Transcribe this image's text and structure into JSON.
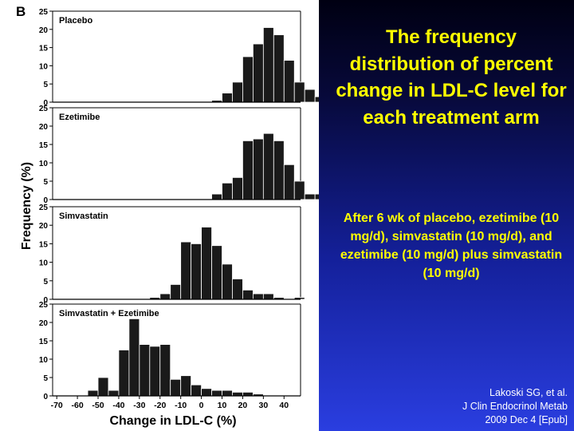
{
  "slide": {
    "title": "The frequency distribution of percent change in LDL-C level for each treatment arm",
    "subtitle": "After 6 wk of placebo, ezetimibe (10 mg/d), simvastatin (10 mg/d), and ezetimibe (10 mg/d) plus simvastatin (10 mg/d)",
    "citation": [
      "Lakoski SG, et al.",
      "J Clin Endocrinol Metab",
      "2009 Dec 4 [Epub]"
    ]
  },
  "chart_data": {
    "type": "bar",
    "panel_label": "B",
    "xlabel": "Change in LDL-C (%)",
    "ylabel": "Frequency (%)",
    "bin_start": -70,
    "bin_width": 5,
    "xlim": [
      -72,
      48
    ],
    "ylim": [
      0,
      25
    ],
    "y_ticks": [
      0,
      5,
      10,
      15,
      20,
      25
    ],
    "x_ticks": [
      -70,
      -60,
      -50,
      -40,
      -30,
      -20,
      -10,
      0,
      10,
      20,
      30,
      40
    ],
    "bar_color": "#1a1a1a",
    "panels": [
      {
        "name": "Placebo",
        "values": [
          0,
          0,
          0,
          0,
          0,
          0,
          0,
          0,
          0,
          0,
          0,
          0,
          0,
          0,
          0,
          0.5,
          2.5,
          5.5,
          12.5,
          16,
          20.5,
          18.5,
          11.5,
          5.5,
          3.5,
          1.5,
          0,
          0.5,
          0,
          0,
          0,
          0.5,
          0
        ]
      },
      {
        "name": "Ezetimibe",
        "values": [
          0,
          0,
          0,
          0,
          0,
          0,
          0,
          0,
          0,
          0,
          0,
          0,
          0,
          0,
          0,
          1.5,
          4.5,
          6,
          16,
          16.5,
          18,
          16,
          9.5,
          5,
          1.5,
          1.5,
          0,
          0,
          0,
          0,
          0,
          0,
          0
        ]
      },
      {
        "name": "Simvastatin",
        "values": [
          0,
          0,
          0,
          0,
          0,
          0,
          0,
          0,
          0,
          0.5,
          1.5,
          4,
          15.5,
          15,
          19.5,
          14.5,
          9.5,
          5.5,
          2.5,
          1.5,
          1.5,
          0.5,
          0,
          0.5,
          0,
          0,
          0,
          0,
          0,
          0,
          0,
          0,
          0
        ]
      },
      {
        "name": "Simvastatin + Ezetimibe",
        "values": [
          0,
          0,
          0,
          1.5,
          5,
          1.5,
          12.5,
          21,
          14,
          13.5,
          14,
          4.5,
          5.5,
          3,
          2,
          1.5,
          1.5,
          1,
          1,
          0.5,
          0,
          0,
          0,
          0,
          0,
          0,
          0,
          0,
          0,
          0,
          0,
          0,
          0
        ]
      }
    ]
  }
}
